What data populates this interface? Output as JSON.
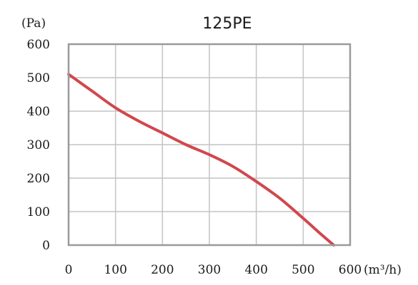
{
  "chart_data": {
    "type": "line",
    "title": "125PE",
    "xlabel": "(m³/h)",
    "ylabel": "(Pa)",
    "xlim": [
      0,
      600
    ],
    "ylim": [
      0,
      600
    ],
    "xticks": [
      "0",
      "100",
      "200",
      "300",
      "400",
      "500",
      "600"
    ],
    "yticks": [
      "0",
      "100",
      "200",
      "300",
      "400",
      "500",
      "600"
    ],
    "grid": true,
    "series": [
      {
        "color": "#d1474d",
        "x": [
          0,
          50,
          100,
          150,
          200,
          250,
          300,
          350,
          400,
          450,
          500,
          540,
          565
        ],
        "y": [
          510,
          460,
          410,
          370,
          335,
          300,
          270,
          235,
          190,
          140,
          80,
          30,
          0
        ]
      }
    ]
  }
}
